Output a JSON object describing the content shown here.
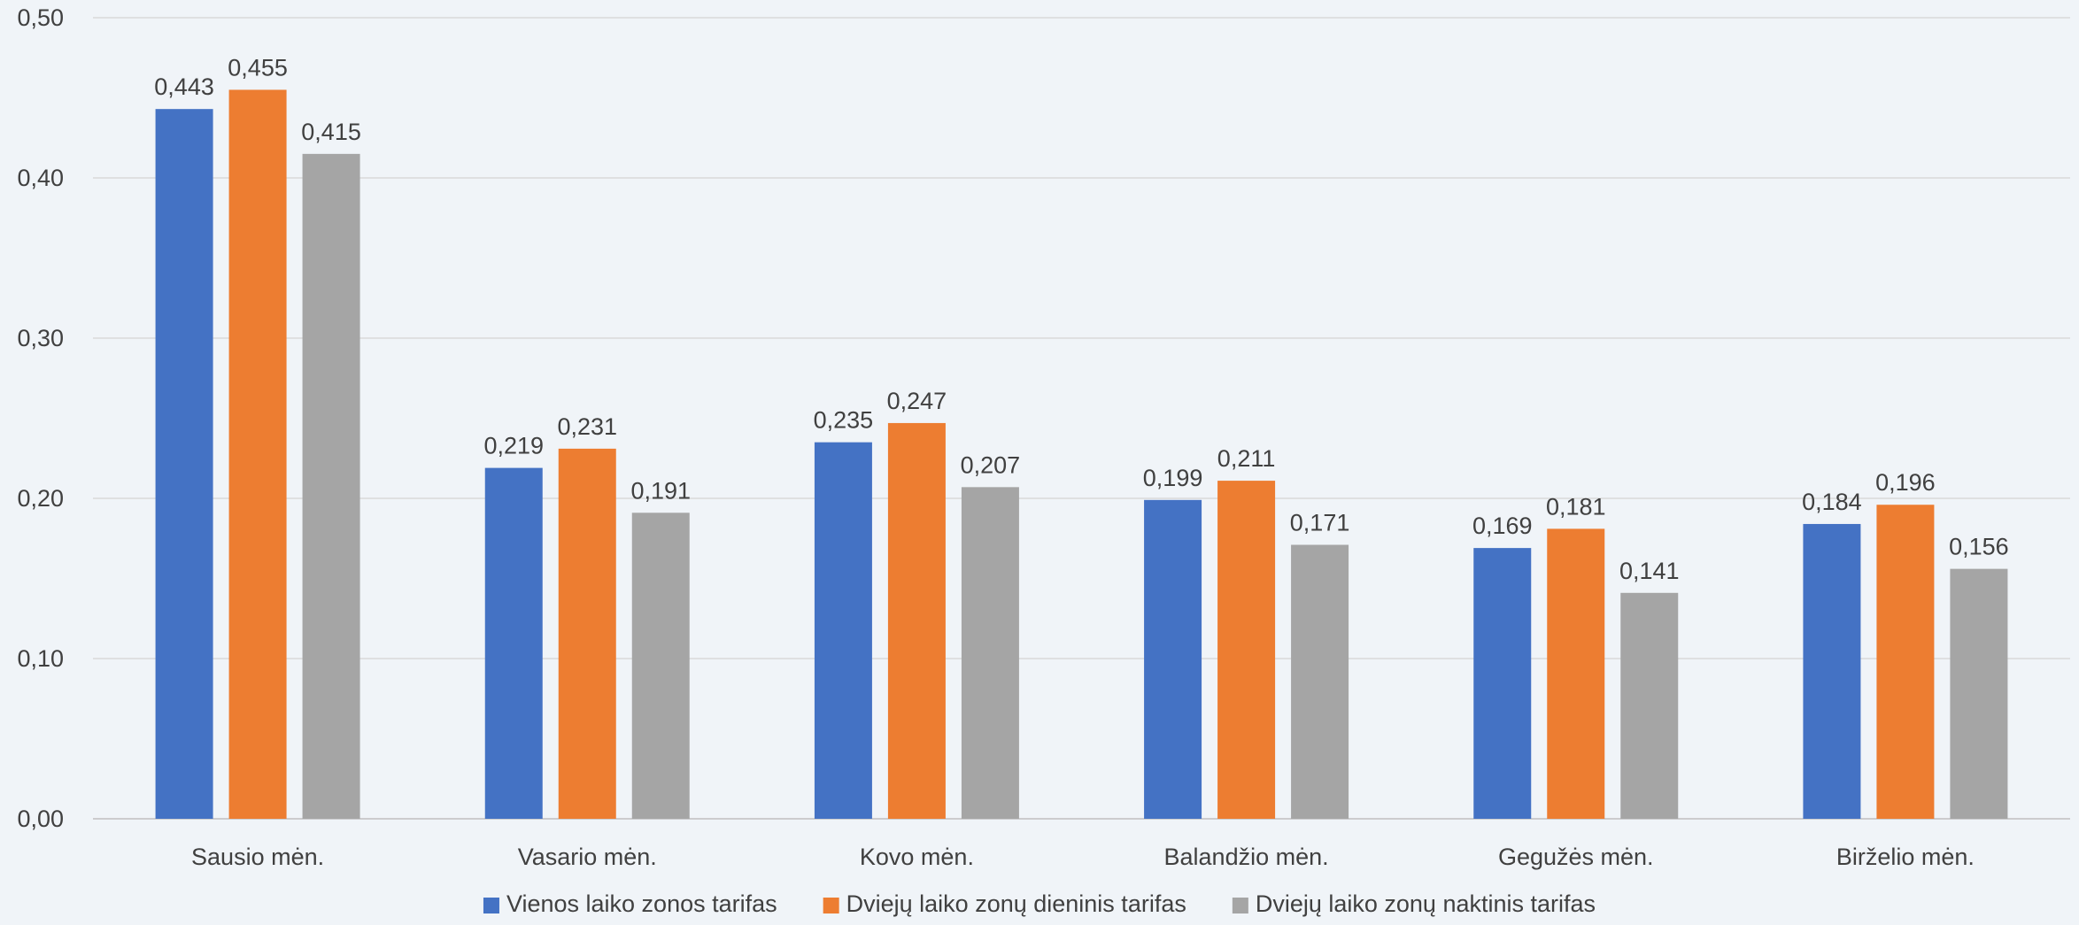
{
  "chart_data": {
    "type": "bar",
    "categories": [
      "Sausio mėn.",
      "Vasario mėn.",
      "Kovo mėn.",
      "Balandžio mėn.",
      "Gegužės  mėn.",
      "Birželio mėn."
    ],
    "series": [
      {
        "name": "Vienos laiko zonos tarifas",
        "color": "#4472c4",
        "values": [
          0.443,
          0.219,
          0.235,
          0.199,
          0.169,
          0.184
        ],
        "labels": [
          "0,443",
          "0,219",
          "0,235",
          "0,199",
          "0,169",
          "0,184"
        ]
      },
      {
        "name": "Dviejų laiko zonų dieninis tarifas",
        "color": "#ed7d31",
        "values": [
          0.455,
          0.231,
          0.247,
          0.211,
          0.181,
          0.196
        ],
        "labels": [
          "0,455",
          "0,231",
          "0,247",
          "0,211",
          "0,181",
          "0,196"
        ]
      },
      {
        "name": "Dviejų laiko zonų naktinis tarifas",
        "color": "#a5a5a5",
        "values": [
          0.415,
          0.191,
          0.207,
          0.171,
          0.141,
          0.156
        ],
        "labels": [
          "0,415",
          "0,191",
          "0,207",
          "0,171",
          "0,141",
          "0,156"
        ]
      }
    ],
    "title": "",
    "xlabel": "",
    "ylabel": "",
    "ylim": [
      0,
      0.5
    ],
    "yticks": [
      0,
      0.1,
      0.2,
      0.3,
      0.4,
      0.5
    ],
    "ytick_labels": [
      "0,00",
      "0,10",
      "0,20",
      "0,30",
      "0,40",
      "0,50"
    ],
    "grid": true,
    "legend_position": "bottom"
  }
}
